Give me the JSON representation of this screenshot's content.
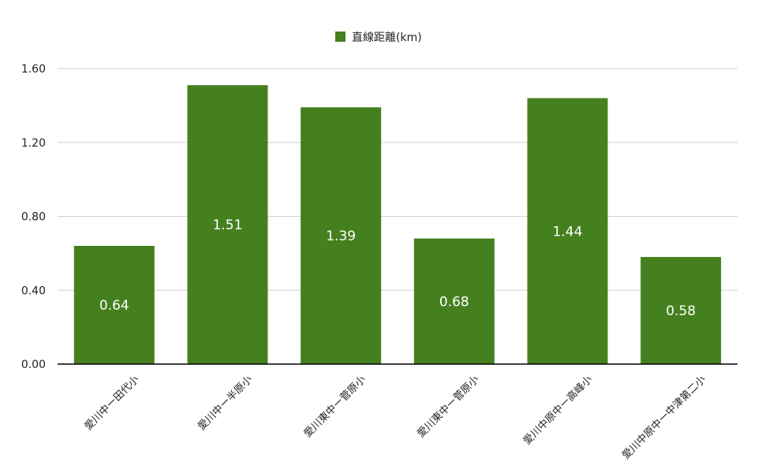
{
  "chart_data": {
    "type": "bar",
    "categories": [
      "愛川中ー田代小",
      "愛川中ー半原小",
      "愛川東中ー菅原小",
      "愛川東中ー菅原小",
      "愛川中原中ー高峰小",
      "愛川中原中ー中津第二小"
    ],
    "series": [
      {
        "name": "直線距離(km)",
        "values": [
          0.64,
          1.51,
          1.39,
          0.68,
          1.44,
          0.58
        ],
        "color": "#45801f"
      }
    ],
    "data_labels": [
      "0.64",
      "1.51",
      "1.39",
      "0.68",
      "1.44",
      "0.58"
    ],
    "y_ticks": [
      "0.00",
      "0.40",
      "0.80",
      "1.20",
      "1.60"
    ],
    "ylim": [
      0,
      1.6
    ],
    "grid": true,
    "legend_position": "top-center",
    "title": "",
    "xlabel": "",
    "ylabel": ""
  }
}
